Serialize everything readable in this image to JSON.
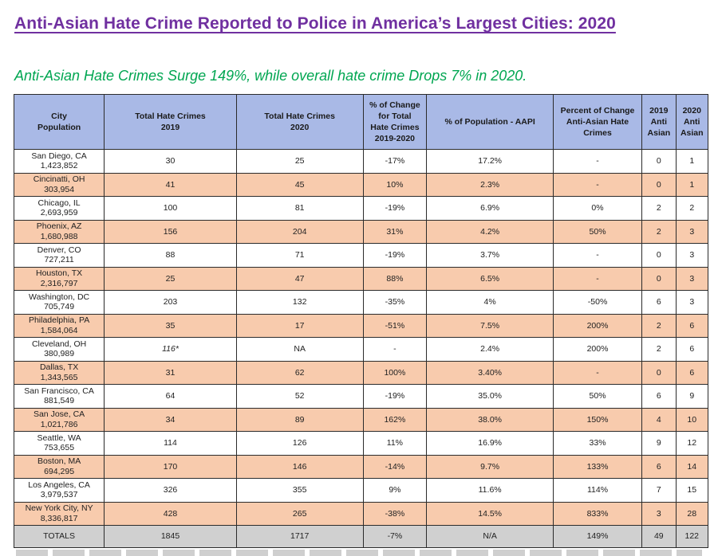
{
  "title": "Anti-Asian Hate Crime Reported to Police in America’s Largest Cities: 2020",
  "subtitle": "Anti-Asian Hate Crimes Surge 149%, while overall hate crime Drops 7% in 2020.",
  "colors": {
    "title": "#7030a0",
    "subtitle": "#00a651",
    "header_bg": "#a9b9e6",
    "row_alt_bg": "#f8cbad",
    "total_bg": "#d0d0d0"
  },
  "table": {
    "headers": [
      "City\nPopulation",
      "Total Hate Crimes\n2019",
      "Total Hate Crimes\n2020",
      "% of Change\nfor Total\nHate Crimes\n2019-2020",
      "% of Population - AAPI",
      "Percent of Change\nAnti-Asian Hate\nCrimes",
      "2019\nAnti\nAsian",
      "2020\nAnti\nAsian"
    ],
    "rows": [
      {
        "city": "San Diego, CA",
        "pop": "1,423,852",
        "t2019": "30",
        "t2020": "25",
        "pct_change": "-17%",
        "aapi": "17.2%",
        "asian_change": "-",
        "a2019": "0",
        "a2020": "1"
      },
      {
        "city": "Cincinatti, OH",
        "pop": "303,954",
        "t2019": "41",
        "t2020": "45",
        "pct_change": "10%",
        "aapi": "2.3%",
        "asian_change": "-",
        "a2019": "0",
        "a2020": "1"
      },
      {
        "city": "Chicago, IL",
        "pop": "2,693,959",
        "t2019": "100",
        "t2020": "81",
        "pct_change": "-19%",
        "aapi": "6.9%",
        "asian_change": "0%",
        "a2019": "2",
        "a2020": "2"
      },
      {
        "city": "Phoenix, AZ",
        "pop": "1,680,988",
        "t2019": "156",
        "t2020": "204",
        "pct_change": "31%",
        "aapi": "4.2%",
        "asian_change": "50%",
        "a2019": "2",
        "a2020": "3"
      },
      {
        "city": "Denver, CO",
        "pop": "727,211",
        "t2019": "88",
        "t2020": "71",
        "pct_change": "-19%",
        "aapi": "3.7%",
        "asian_change": "-",
        "a2019": "0",
        "a2020": "3"
      },
      {
        "city": "Houston, TX",
        "pop": "2,316,797",
        "t2019": "25",
        "t2020": "47",
        "pct_change": "88%",
        "aapi": "6.5%",
        "asian_change": "-",
        "a2019": "0",
        "a2020": "3"
      },
      {
        "city": "Washington, DC",
        "pop": "705,749",
        "t2019": "203",
        "t2020": "132",
        "pct_change": "-35%",
        "aapi": "4%",
        "asian_change": "-50%",
        "a2019": "6",
        "a2020": "3"
      },
      {
        "city": "Philadelphia, PA",
        "pop": "1,584,064",
        "t2019": "35",
        "t2020": "17",
        "pct_change": "-51%",
        "aapi": "7.5%",
        "asian_change": "200%",
        "a2019": "2",
        "a2020": "6"
      },
      {
        "city": "Cleveland, OH",
        "pop": "380,989",
        "t2019": "116*",
        "t2020": "NA",
        "pct_change": "-",
        "aapi": "2.4%",
        "asian_change": "200%",
        "a2019": "2",
        "a2020": "6"
      },
      {
        "city": "Dallas, TX",
        "pop": "1,343,565",
        "t2019": "31",
        "t2020": "62",
        "pct_change": "100%",
        "aapi": "3.40%",
        "asian_change": "-",
        "a2019": "0",
        "a2020": "6"
      },
      {
        "city": "San Francisco, CA",
        "pop": "881,549",
        "t2019": "64",
        "t2020": "52",
        "pct_change": "-19%",
        "aapi": "35.0%",
        "asian_change": "50%",
        "a2019": "6",
        "a2020": "9"
      },
      {
        "city": "San Jose, CA",
        "pop": "1,021,786",
        "t2019": "34",
        "t2020": "89",
        "pct_change": "162%",
        "aapi": "38.0%",
        "asian_change": "150%",
        "a2019": "4",
        "a2020": "10"
      },
      {
        "city": "Seattle, WA",
        "pop": "753,655",
        "t2019": "114",
        "t2020": "126",
        "pct_change": "11%",
        "aapi": "16.9%",
        "asian_change": "33%",
        "a2019": "9",
        "a2020": "12"
      },
      {
        "city": "Boston, MA",
        "pop": "694,295",
        "t2019": "170",
        "t2020": "146",
        "pct_change": "-14%",
        "aapi": "9.7%",
        "asian_change": "133%",
        "a2019": "6",
        "a2020": "14"
      },
      {
        "city": "Los Angeles, CA",
        "pop": "3,979,537",
        "t2019": "326",
        "t2020": "355",
        "pct_change": "9%",
        "aapi": "11.6%",
        "asian_change": "114%",
        "a2019": "7",
        "a2020": "15"
      },
      {
        "city": "New York City, NY",
        "pop": "8,336,817",
        "t2019": "428",
        "t2020": "265",
        "pct_change": "-38%",
        "aapi": "14.5%",
        "asian_change": "833%",
        "a2019": "3",
        "a2020": "28"
      }
    ],
    "totals": {
      "label": "TOTALS",
      "t2019": "1845",
      "t2020": "1717",
      "pct_change": "-7%",
      "aapi": "N/A",
      "asian_change": "149%",
      "a2019": "49",
      "a2020": "122"
    }
  }
}
